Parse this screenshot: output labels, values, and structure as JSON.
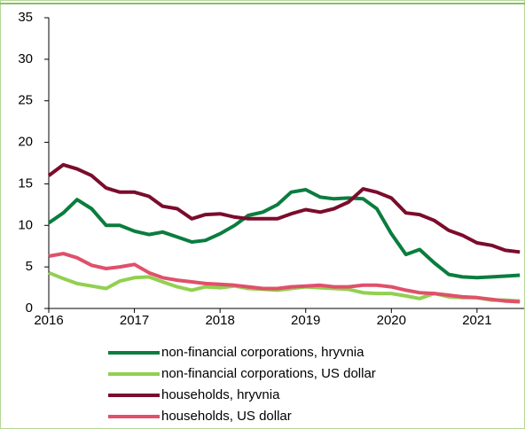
{
  "chart_data": {
    "type": "line",
    "x": [
      2016.0,
      2016.17,
      2016.33,
      2016.5,
      2016.67,
      2016.83,
      2017.0,
      2017.17,
      2017.33,
      2017.5,
      2017.67,
      2017.83,
      2018.0,
      2018.17,
      2018.33,
      2018.5,
      2018.67,
      2018.83,
      2019.0,
      2019.17,
      2019.33,
      2019.5,
      2019.67,
      2019.83,
      2020.0,
      2020.17,
      2020.33,
      2020.5,
      2020.67,
      2020.83,
      2021.0,
      2021.17,
      2021.33,
      2021.5
    ],
    "series": [
      {
        "name": "non-financial corporations, hryvnia",
        "color": "#0a7d3e",
        "values": [
          10.3,
          11.5,
          13.1,
          12.0,
          10.0,
          10.0,
          9.3,
          8.9,
          9.2,
          8.6,
          8.0,
          8.2,
          9.0,
          10.0,
          11.2,
          11.6,
          12.5,
          14.0,
          14.3,
          13.4,
          13.2,
          13.3,
          13.2,
          12.0,
          9.0,
          6.5,
          7.1,
          5.5,
          4.1,
          3.8,
          3.7,
          3.8,
          3.9,
          4.0
        ]
      },
      {
        "name": "non-financial corporations, US dollar",
        "color": "#92d050",
        "values": [
          4.3,
          3.6,
          3.0,
          2.7,
          2.4,
          3.3,
          3.7,
          3.8,
          3.2,
          2.6,
          2.2,
          2.6,
          2.5,
          2.7,
          2.4,
          2.3,
          2.2,
          2.4,
          2.6,
          2.5,
          2.4,
          2.3,
          1.9,
          1.8,
          1.8,
          1.5,
          1.2,
          1.8,
          1.4,
          1.3,
          1.3,
          1.0,
          1.0,
          0.9
        ]
      },
      {
        "name": "households, hryvnia",
        "color": "#7b0c2c",
        "values": [
          16.0,
          17.3,
          16.8,
          16.0,
          14.5,
          14.0,
          14.0,
          13.5,
          12.3,
          12.0,
          10.8,
          11.3,
          11.4,
          11.0,
          10.8,
          10.8,
          10.8,
          11.4,
          11.9,
          11.6,
          12.0,
          12.8,
          14.4,
          14.0,
          13.3,
          11.5,
          11.3,
          10.6,
          9.4,
          8.8,
          7.9,
          7.6,
          7.0,
          6.8
        ]
      },
      {
        "name": "households, US dollar",
        "color": "#e0506a",
        "values": [
          6.3,
          6.6,
          6.1,
          5.2,
          4.8,
          5.0,
          5.3,
          4.3,
          3.7,
          3.4,
          3.2,
          3.0,
          2.9,
          2.8,
          2.6,
          2.4,
          2.4,
          2.6,
          2.7,
          2.8,
          2.6,
          2.6,
          2.8,
          2.8,
          2.6,
          2.2,
          1.9,
          1.8,
          1.6,
          1.4,
          1.3,
          1.1,
          0.9,
          0.8
        ]
      }
    ],
    "xlim": [
      2016,
      2021.55
    ],
    "xticks": [
      2016,
      2017,
      2018,
      2019,
      2020,
      2021
    ],
    "ylim": [
      0,
      35
    ],
    "yticks": [
      0,
      5,
      10,
      15,
      20,
      25,
      30,
      35
    ],
    "grid": false,
    "legend": "bottom"
  }
}
